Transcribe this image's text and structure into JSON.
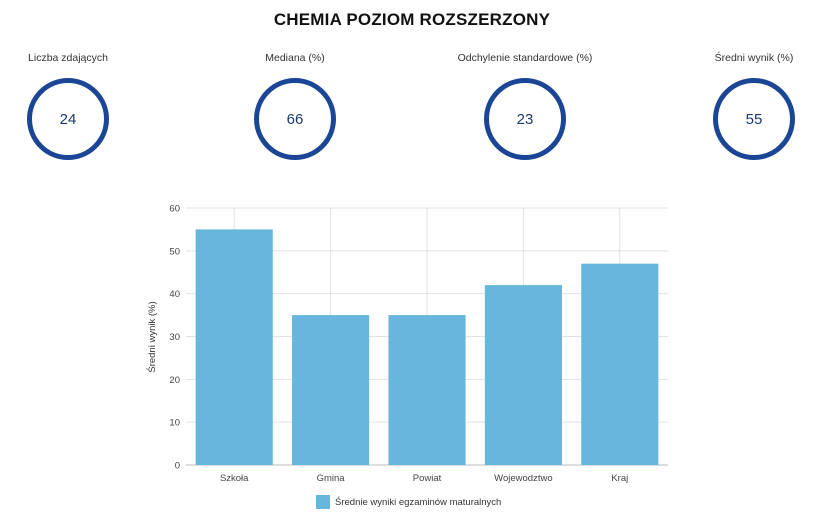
{
  "title": "CHEMIA POZIOM ROZSZERZONY",
  "stats": [
    {
      "label": "Liczba zdających",
      "value": "24"
    },
    {
      "label": "Mediana (%)",
      "value": "66"
    },
    {
      "label": "Odchylenie standardowe (%)",
      "value": "23"
    },
    {
      "label": "Średni wynik (%)",
      "value": "55"
    }
  ],
  "colors": {
    "ring": "#1b4595",
    "bar": "#67b6dc",
    "grid": "#e2e2e2"
  },
  "chart_data": {
    "type": "bar",
    "categories": [
      "Szkoła",
      "Gmina",
      "Powiat",
      "Wojewodztwo",
      "Kraj"
    ],
    "series": [
      {
        "name": "Średnie wyniki egzaminów maturalnych",
        "values": [
          55,
          35,
          35,
          42,
          47
        ]
      }
    ],
    "ylabel": "Średni wynik (%)",
    "xlabel": "",
    "ylim": [
      0,
      60
    ],
    "yticks": [
      0,
      10,
      20,
      30,
      40,
      50,
      60
    ],
    "grid": true,
    "legend": "bottom"
  }
}
